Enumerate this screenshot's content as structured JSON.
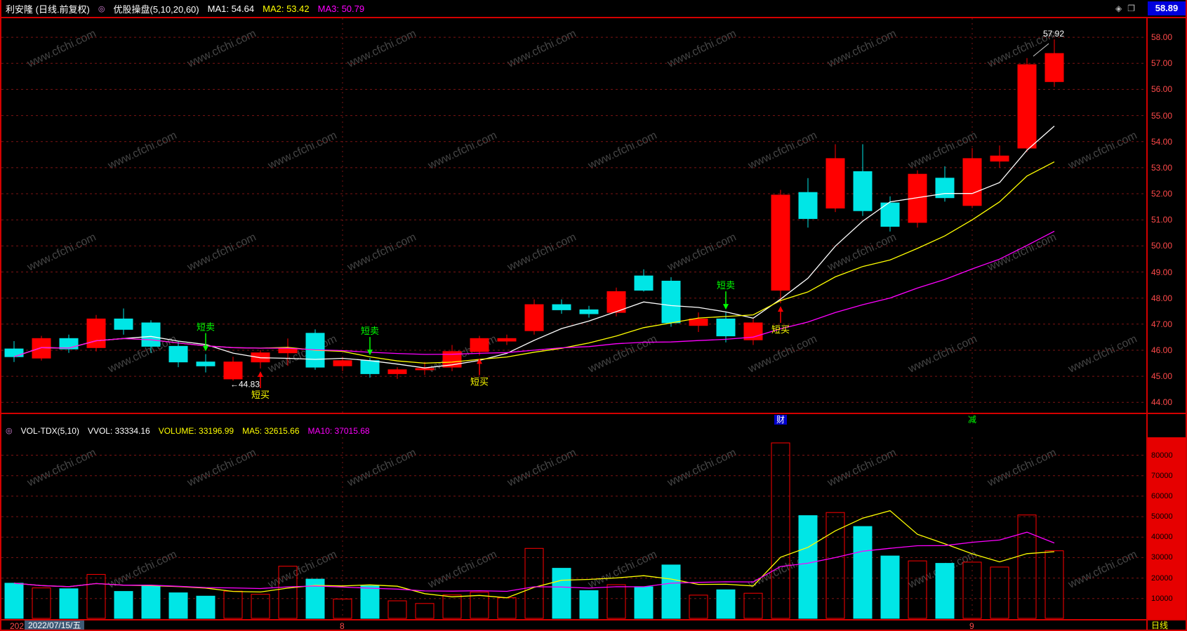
{
  "header": {
    "title": "利安隆 (日线.前复权)",
    "indicator": "优股操盘(5,10,20,60)",
    "ma1": "MA1: 54.64",
    "ma2": "MA2: 53.42",
    "ma3": "MA3: 50.79",
    "last_price": "58.89",
    "icons": {
      "dropdown": "◎",
      "diamond": "◈",
      "window": "❐"
    }
  },
  "volume_header": {
    "indicator": "VOL-TDX(5,10)",
    "vvol": "VVOL: 33334.16",
    "volume": "VOLUME: 33196.99",
    "ma5": "MA5: 32615.66",
    "ma10": "MA10: 37015.68"
  },
  "footer": {
    "partial_year": "202",
    "date": "2022/07/15/五",
    "period": "日线"
  },
  "watermark": {
    "text": "www.cfchi.com"
  },
  "colors": {
    "up": "#ff0000",
    "down": "#00e6e6",
    "ma1": "#ffffff",
    "ma2": "#ffff00",
    "ma3": "#ff00ff",
    "vol_ma5": "#ffff00",
    "vol_ma10": "#ff00ff",
    "grid": "#7c1414",
    "frame": "#d40000",
    "axis_text": "#ff4a4a",
    "sell": "#00ff00",
    "buy": "#ff0000",
    "buy_text": "#ffff00",
    "annotation": "#ffffff",
    "watermark": "#464646",
    "badge_bg": "#0000dd",
    "marker_bg": "#0000cc"
  },
  "chart_data": {
    "type": "candlestick",
    "title": "利安隆 日线 前复权",
    "price_panel": {
      "ylim": [
        43.55,
        58.73
      ],
      "gridlines": [
        44,
        45,
        46,
        47,
        48,
        49,
        50,
        51,
        52,
        53,
        54,
        55,
        56,
        57,
        58
      ]
    },
    "volume_panel": {
      "vmax": 86000,
      "gridlines": [
        10000,
        20000,
        30000,
        40000,
        50000,
        60000,
        70000,
        80000
      ]
    },
    "candle_columns": [
      "open",
      "high",
      "low",
      "close",
      "volume"
    ],
    "candles": [
      [
        46.05,
        46.35,
        45.55,
        45.75,
        17500
      ],
      [
        45.7,
        46.55,
        45.6,
        46.45,
        15200
      ],
      [
        46.45,
        46.6,
        45.9,
        46.05,
        14800
      ],
      [
        46.1,
        47.35,
        45.95,
        47.2,
        21800
      ],
      [
        47.2,
        47.6,
        46.6,
        46.8,
        13500
      ],
      [
        47.05,
        47.15,
        45.9,
        46.15,
        16400
      ],
      [
        46.15,
        46.35,
        45.35,
        45.55,
        12800
      ],
      [
        45.55,
        45.85,
        45.15,
        45.4,
        11200
      ],
      [
        44.9,
        45.75,
        44.83,
        45.55,
        13600
      ],
      [
        45.55,
        46.0,
        45.3,
        45.9,
        12100
      ],
      [
        45.9,
        46.45,
        45.4,
        46.05,
        25800
      ],
      [
        46.65,
        46.8,
        45.25,
        45.35,
        19500
      ],
      [
        45.4,
        45.75,
        45.2,
        45.6,
        9800
      ],
      [
        45.6,
        45.7,
        44.95,
        45.1,
        16200
      ],
      [
        45.1,
        45.35,
        44.9,
        45.25,
        8900
      ],
      [
        45.25,
        45.55,
        45.05,
        45.3,
        7600
      ],
      [
        45.35,
        46.2,
        45.2,
        45.95,
        11800
      ],
      [
        45.95,
        46.55,
        45.8,
        46.45,
        13200
      ],
      [
        46.35,
        46.6,
        46.2,
        46.45,
        10400
      ],
      [
        46.75,
        47.95,
        46.6,
        47.75,
        34500
      ],
      [
        47.75,
        47.95,
        47.4,
        47.55,
        24800
      ],
      [
        47.55,
        47.7,
        47.25,
        47.4,
        13900
      ],
      [
        47.45,
        48.4,
        47.3,
        48.25,
        16800
      ],
      [
        48.85,
        49.1,
        48.25,
        48.3,
        15800
      ],
      [
        48.65,
        48.8,
        46.9,
        47.05,
        26400
      ],
      [
        46.95,
        47.45,
        46.7,
        47.2,
        11700
      ],
      [
        47.2,
        47.45,
        46.3,
        46.55,
        14300
      ],
      [
        46.4,
        47.2,
        46.2,
        47.05,
        12600
      ],
      [
        48.3,
        52.15,
        47.8,
        51.95,
        86000
      ],
      [
        52.05,
        52.6,
        50.7,
        51.05,
        50500
      ],
      [
        51.45,
        53.9,
        51.3,
        53.35,
        52000
      ],
      [
        52.85,
        53.9,
        51.15,
        51.35,
        45200
      ],
      [
        51.65,
        51.9,
        50.55,
        50.75,
        30800
      ],
      [
        50.9,
        52.9,
        50.7,
        52.75,
        28400
      ],
      [
        52.6,
        53.05,
        51.7,
        51.85,
        27200
      ],
      [
        51.55,
        53.75,
        51.45,
        53.35,
        27800
      ],
      [
        53.25,
        53.85,
        53.0,
        53.45,
        25400
      ],
      [
        53.75,
        57.2,
        53.6,
        56.95,
        50800
      ],
      [
        56.3,
        57.92,
        56.1,
        57.38,
        33334
      ]
    ],
    "ma_periods": [
      5,
      10,
      20
    ],
    "vol_ma_periods": [
      5,
      10
    ],
    "signals": {
      "sell": {
        "label": "短卖",
        "indexes": [
          7,
          13,
          26
        ]
      },
      "buy": {
        "label": "短买",
        "indexes": [
          9,
          17,
          28
        ]
      }
    },
    "annotations": [
      {
        "index": 8,
        "attach": "low",
        "text": "←44.83"
      },
      {
        "index": 38,
        "attach": "high",
        "text": "57.92"
      }
    ],
    "markers": [
      {
        "index": 28,
        "text": "财",
        "bg": "#0000cc",
        "color": "#ffffff"
      },
      {
        "index": 35,
        "text": "减",
        "bg": null,
        "color": "#00ff00"
      }
    ],
    "month_ticks": [
      {
        "index": 12,
        "label": "8"
      },
      {
        "index": 35,
        "label": "9"
      }
    ]
  }
}
